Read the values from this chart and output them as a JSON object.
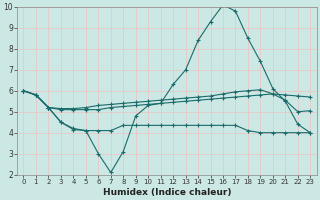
{
  "xlabel": "Humidex (Indice chaleur)",
  "background_color": "#cce8e4",
  "line_color": "#1a6b6b",
  "grid_color": "#e8c8c8",
  "xlim": [
    -0.5,
    23.5
  ],
  "ylim": [
    2,
    10
  ],
  "yticks": [
    2,
    3,
    4,
    5,
    6,
    7,
    8,
    9,
    10
  ],
  "xticks": [
    0,
    1,
    2,
    3,
    4,
    5,
    6,
    7,
    8,
    9,
    10,
    11,
    12,
    13,
    14,
    15,
    16,
    17,
    18,
    19,
    20,
    21,
    22,
    23
  ],
  "x": [
    0,
    1,
    2,
    3,
    4,
    5,
    6,
    7,
    8,
    9,
    10,
    11,
    12,
    13,
    14,
    15,
    16,
    17,
    18,
    19,
    20,
    21,
    22,
    23
  ],
  "line1": [
    6.0,
    5.8,
    5.2,
    4.5,
    4.2,
    4.1,
    3.0,
    2.1,
    3.1,
    4.8,
    5.3,
    5.4,
    6.3,
    7.0,
    8.4,
    9.3,
    10.1,
    9.8,
    8.5,
    7.4,
    6.1,
    5.5,
    4.4,
    4.0
  ],
  "line2": [
    6.0,
    5.8,
    5.2,
    5.15,
    5.15,
    5.2,
    5.3,
    5.35,
    5.4,
    5.45,
    5.5,
    5.55,
    5.6,
    5.65,
    5.7,
    5.75,
    5.85,
    5.95,
    6.0,
    6.05,
    5.85,
    5.8,
    5.75,
    5.7
  ],
  "line3": [
    6.0,
    5.8,
    5.2,
    5.1,
    5.1,
    5.1,
    5.1,
    5.2,
    5.25,
    5.3,
    5.35,
    5.4,
    5.45,
    5.5,
    5.55,
    5.6,
    5.65,
    5.7,
    5.75,
    5.8,
    5.85,
    5.55,
    5.0,
    5.05
  ],
  "line4": [
    6.0,
    5.8,
    5.2,
    4.5,
    4.15,
    4.1,
    4.1,
    4.1,
    4.35,
    4.35,
    4.35,
    4.35,
    4.35,
    4.35,
    4.35,
    4.35,
    4.35,
    4.35,
    4.1,
    4.0,
    4.0,
    4.0,
    4.0,
    4.0
  ]
}
